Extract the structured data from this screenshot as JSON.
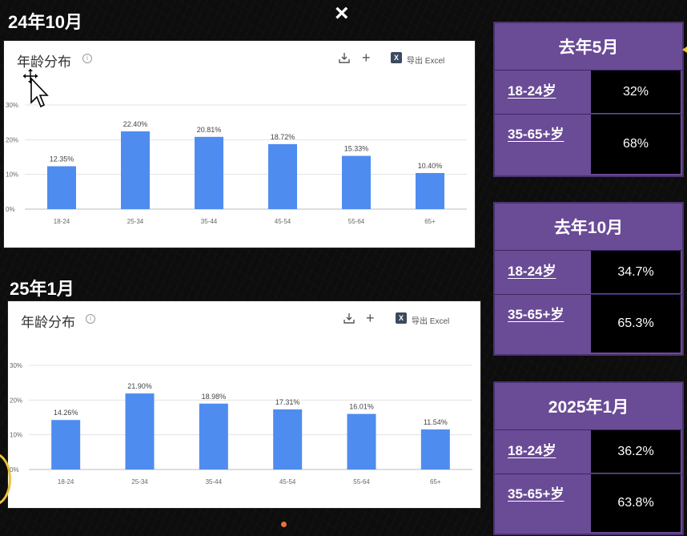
{
  "titles": {
    "top": "24年10月",
    "bottom": "25年1月",
    "close": "×"
  },
  "card": {
    "title": "年龄分布",
    "info": "i",
    "plus": "+",
    "excel_icon": "X",
    "export": "导出 Excel"
  },
  "chart_data": [
    {
      "type": "bar",
      "title": "年龄分布",
      "categories": [
        "18-24",
        "25-34",
        "35-44",
        "45-54",
        "55-64",
        "65+"
      ],
      "values": [
        12.35,
        22.4,
        20.81,
        18.72,
        15.33,
        10.4
      ],
      "labels": [
        "12.35%",
        "22.40%",
        "20.81%",
        "18.72%",
        "15.33%",
        "10.40%"
      ],
      "yticks": [
        "0%",
        "10%",
        "20%",
        "30%"
      ],
      "ylim": [
        0,
        30
      ],
      "grid": true,
      "color": "#4f8cf0"
    },
    {
      "type": "bar",
      "title": "年龄分布",
      "categories": [
        "18-24",
        "25-34",
        "35-44",
        "45-54",
        "55-64",
        "65+"
      ],
      "values": [
        14.26,
        21.9,
        18.98,
        17.31,
        16.01,
        11.54
      ],
      "labels": [
        "14.26%",
        "21.90%",
        "18.98%",
        "17.31%",
        "16.01%",
        "11.54%"
      ],
      "yticks": [
        "0%",
        "10%",
        "20%",
        "30%"
      ],
      "ylim": [
        0,
        30
      ],
      "grid": true,
      "color": "#4f8cf0"
    }
  ],
  "panels": [
    {
      "title": "去年5月",
      "rows": [
        {
          "label": "18-24岁",
          "value": "32%"
        },
        {
          "label": "35-65+岁",
          "value": "68%"
        }
      ]
    },
    {
      "title": "去年10月",
      "rows": [
        {
          "label": "18-24岁",
          "value": "34.7%"
        },
        {
          "label": "35-65+岁",
          "value": "65.3%"
        }
      ]
    },
    {
      "title": "2025年1月",
      "rows": [
        {
          "label": "18-24岁",
          "value": "36.2%"
        },
        {
          "label": "35-65+岁",
          "value": "63.8%"
        }
      ]
    }
  ],
  "colors": {
    "panel": "#6a4b96",
    "bar": "#4f8cf0",
    "background": "#0d0d0d"
  }
}
